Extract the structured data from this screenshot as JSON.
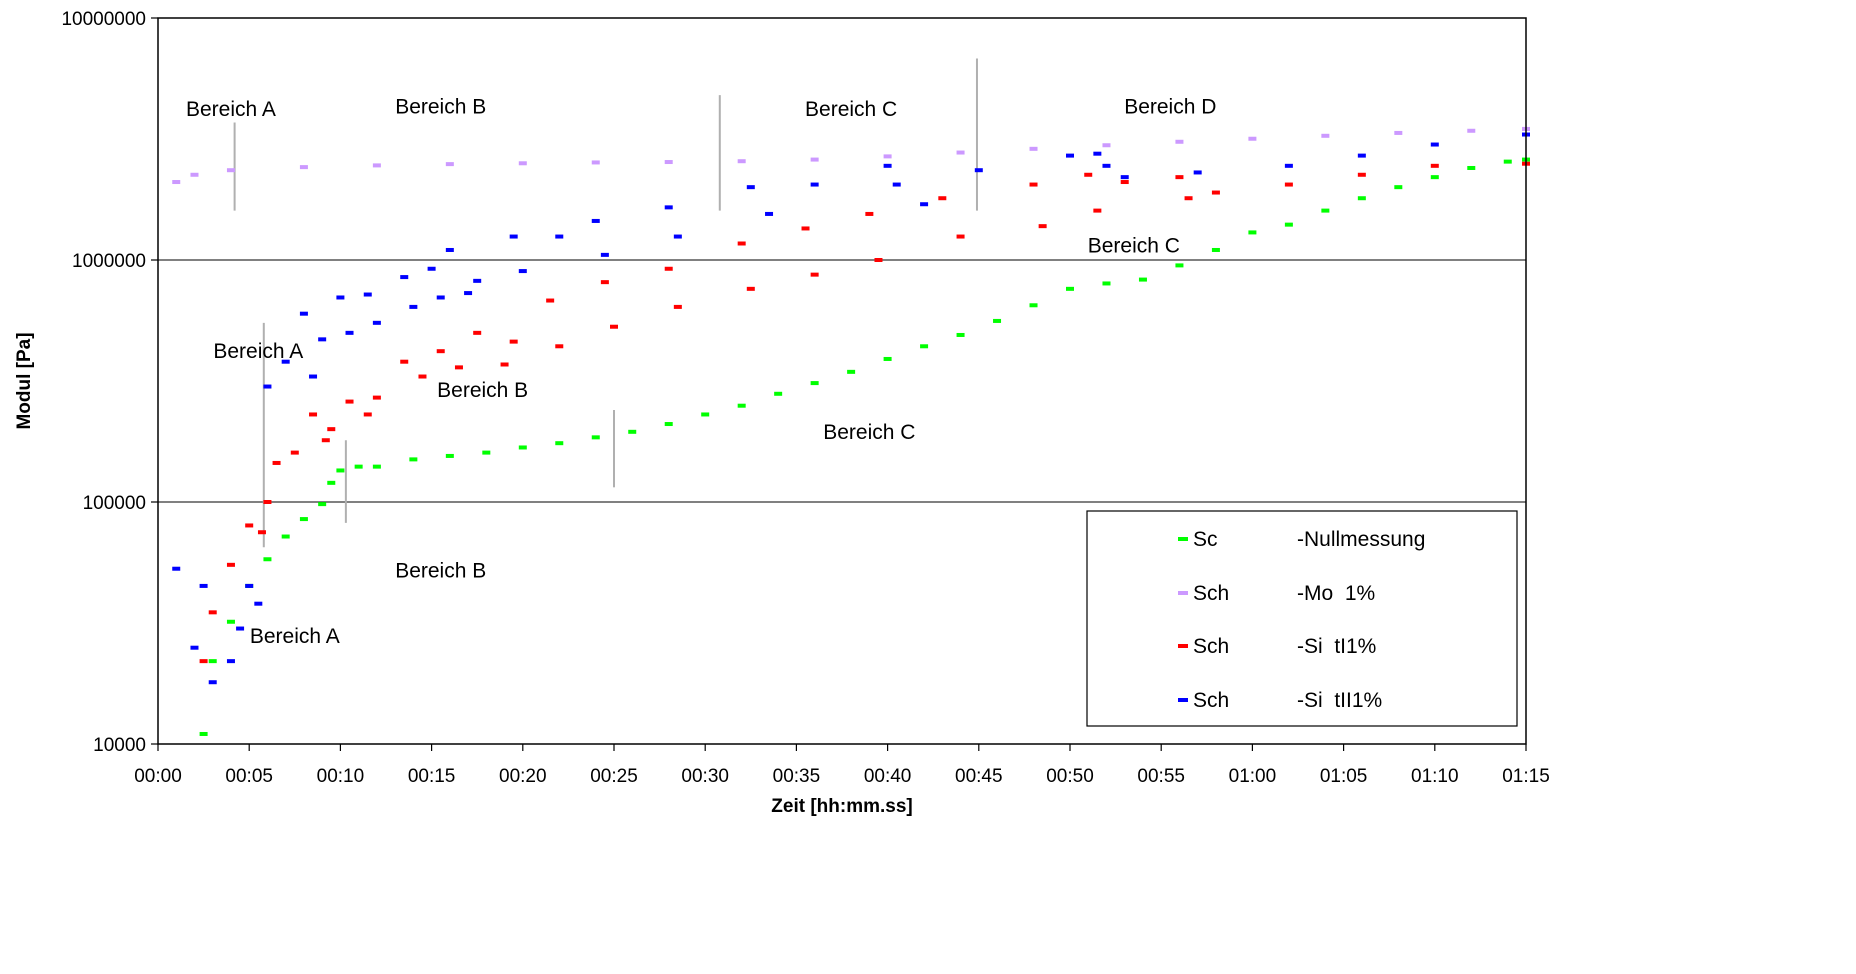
{
  "chart_data": {
    "type": "scatter",
    "title": "",
    "xlabel": "Zeit [hh:mm.ss]",
    "ylabel": "Modul [Pa]",
    "x_unit": "minutes",
    "xlim": [
      0,
      75
    ],
    "ylim": [
      10000,
      10000000
    ],
    "y_scale": "log",
    "grid": "horizontal major lines",
    "legend_position": "bottom-right",
    "x_ticks": [
      {
        "value": 0,
        "label": "00:00"
      },
      {
        "value": 5,
        "label": "00:05"
      },
      {
        "value": 10,
        "label": "00:10"
      },
      {
        "value": 15,
        "label": "00:15"
      },
      {
        "value": 20,
        "label": "00:20"
      },
      {
        "value": 25,
        "label": "00:25"
      },
      {
        "value": 30,
        "label": "00:30"
      },
      {
        "value": 35,
        "label": "00:35"
      },
      {
        "value": 40,
        "label": "00:40"
      },
      {
        "value": 45,
        "label": "00:45"
      },
      {
        "value": 50,
        "label": "00:50"
      },
      {
        "value": 55,
        "label": "00:55"
      },
      {
        "value": 60,
        "label": "01:00"
      },
      {
        "value": 65,
        "label": "01:05"
      },
      {
        "value": 70,
        "label": "01:10"
      },
      {
        "value": 75,
        "label": "01:15"
      }
    ],
    "y_ticks": [
      {
        "value": 10000,
        "label": "10000"
      },
      {
        "value": 100000,
        "label": "100000"
      },
      {
        "value": 1000000,
        "label": "1000000"
      },
      {
        "value": 10000000,
        "label": "10000000"
      }
    ],
    "series": [
      {
        "name": "Sc",
        "name_suffix": "-Nullmessung",
        "color": "#00ff00",
        "x": [
          2.5,
          3.0,
          4.0,
          5.0,
          6.0,
          7.0,
          8.0,
          9.0,
          9.5,
          10.0,
          11.0,
          12.0,
          14.0,
          16.0,
          18.0,
          20.0,
          22.0,
          24.0,
          26.0,
          28.0,
          30.0,
          32.0,
          34.0,
          36.0,
          38.0,
          40.0,
          42.0,
          44.0,
          46.0,
          48.0,
          50.0,
          52.0,
          54.0,
          56.0,
          58.0,
          60.0,
          62.0,
          64.0,
          66.0,
          68.0,
          70.0,
          72.0,
          74.0,
          75.0
        ],
        "y": [
          11000,
          22000,
          32000,
          45000,
          58000,
          72000,
          85000,
          98000,
          120000,
          135000,
          140000,
          140000,
          150000,
          155000,
          160000,
          168000,
          175000,
          185000,
          195000,
          210000,
          230000,
          250000,
          280000,
          310000,
          345000,
          390000,
          440000,
          490000,
          560000,
          650000,
          760000,
          800000,
          830000,
          950000,
          1100000,
          1300000,
          1400000,
          1600000,
          1800000,
          2000000,
          2200000,
          2400000,
          2550000,
          2600000
        ]
      },
      {
        "name": "Sch",
        "name_suffix": "-Mo  1%",
        "color": "#cc99ff",
        "x": [
          1.0,
          2.0,
          4.0,
          8.0,
          12.0,
          16.0,
          20.0,
          24.0,
          28.0,
          32.0,
          36.0,
          40.0,
          44.0,
          48.0,
          52.0,
          56.0,
          60.0,
          64.0,
          68.0,
          72.0,
          75.0
        ],
        "y": [
          2100000,
          2250000,
          2350000,
          2420000,
          2460000,
          2490000,
          2510000,
          2530000,
          2540000,
          2560000,
          2600000,
          2680000,
          2780000,
          2880000,
          2980000,
          3080000,
          3170000,
          3260000,
          3350000,
          3420000,
          3480000
        ]
      },
      {
        "name": "Sch",
        "name_suffix": "-Si  tI1%",
        "color": "#ff0000",
        "x": [
          2.5,
          3.0,
          4.0,
          5.0,
          5.7,
          6.0,
          6.5,
          7.5,
          8.5,
          9.2,
          9.5,
          10.5,
          11.5,
          12.0,
          13.5,
          14.5,
          15.5,
          16.5,
          17.5,
          19.0,
          19.5,
          21.5,
          22.0,
          24.5,
          25.0,
          28.0,
          28.5,
          32.0,
          32.5,
          35.5,
          36.0,
          39.0,
          39.5,
          43.0,
          44.0,
          48.0,
          48.5,
          51.0,
          51.5,
          53.0,
          56.0,
          56.5,
          58.0,
          62.0,
          66.0,
          70.0,
          75.0
        ],
        "y": [
          22000,
          35000,
          55000,
          80000,
          75000,
          100000,
          145000,
          160000,
          230000,
          180000,
          200000,
          260000,
          230000,
          270000,
          380000,
          330000,
          420000,
          360000,
          500000,
          370000,
          460000,
          680000,
          440000,
          810000,
          530000,
          920000,
          640000,
          1170000,
          760000,
          1350000,
          870000,
          1550000,
          1000000,
          1800000,
          1250000,
          2050000,
          1380000,
          2250000,
          1600000,
          2100000,
          2200000,
          1800000,
          1900000,
          2050000,
          2250000,
          2450000,
          2500000
        ]
      },
      {
        "name": "Sch",
        "name_suffix": "-Si  tII1%",
        "color": "#0000ff",
        "x": [
          1.0,
          2.0,
          2.5,
          3.0,
          4.0,
          4.5,
          5.0,
          5.5,
          6.0,
          7.0,
          8.0,
          8.5,
          9.0,
          10.0,
          10.5,
          11.5,
          12.0,
          13.5,
          14.0,
          15.0,
          15.5,
          16.0,
          17.0,
          17.5,
          19.5,
          20.0,
          22.0,
          24.0,
          24.5,
          28.0,
          28.5,
          32.5,
          33.5,
          36.0,
          40.0,
          40.5,
          42.0,
          45.0,
          50.0,
          51.5,
          52.0,
          53.0,
          57.0,
          62.0,
          66.0,
          70.0,
          75.0
        ],
        "y": [
          53000,
          25000,
          45000,
          18000,
          22000,
          30000,
          45000,
          38000,
          300000,
          380000,
          600000,
          330000,
          470000,
          700000,
          500000,
          720000,
          550000,
          850000,
          640000,
          920000,
          700000,
          1100000,
          730000,
          820000,
          1250000,
          900000,
          1250000,
          1450000,
          1050000,
          1650000,
          1250000,
          2000000,
          1550000,
          2050000,
          2450000,
          2050000,
          1700000,
          2350000,
          2700000,
          2750000,
          2450000,
          2200000,
          2300000,
          2450000,
          2700000,
          3000000,
          3300000
        ]
      }
    ],
    "annotations": [
      {
        "text": "Bereich A",
        "x": 4.0,
        "y": 4200000
      },
      {
        "text": "Bereich B",
        "x": 15.5,
        "y": 4300000
      },
      {
        "text": "Bereich C",
        "x": 38.0,
        "y": 4200000
      },
      {
        "text": "Bereich D",
        "x": 55.5,
        "y": 4300000
      },
      {
        "text": "Bereich C",
        "x": 53.5,
        "y": 1150000
      },
      {
        "text": "Bereich A",
        "x": 5.5,
        "y": 420000
      },
      {
        "text": "Bereich B",
        "x": 17.8,
        "y": 290000
      },
      {
        "text": "Bereich C",
        "x": 39.0,
        "y": 195000
      },
      {
        "text": "Bereich B",
        "x": 15.5,
        "y": 52000
      },
      {
        "text": "Bereich A",
        "x": 7.5,
        "y": 28000
      }
    ],
    "region_dividers": [
      {
        "x": 4.2,
        "y1": 1600000,
        "y2": 3700000
      },
      {
        "x": 30.8,
        "y1": 1600000,
        "y2": 4800000
      },
      {
        "x": 44.9,
        "y1": 1600000,
        "y2": 6800000
      },
      {
        "x": 5.8,
        "y1": 65000,
        "y2": 550000
      },
      {
        "x": 25.0,
        "y1": 115000,
        "y2": 240000
      },
      {
        "x": 10.3,
        "y1": 82000,
        "y2": 180000
      }
    ]
  }
}
